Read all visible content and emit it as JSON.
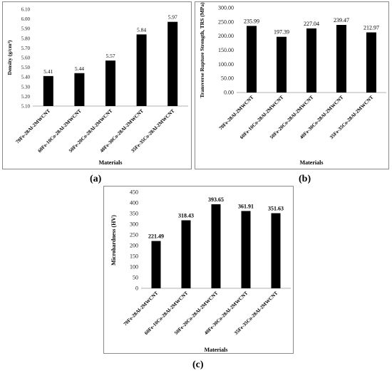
{
  "chart_data": [
    {
      "type": "bar",
      "panel": "(a)",
      "categories": [
        "70Fe-28Al-2MWCNT",
        "60Fe-10Co-28Al-2MWCNT",
        "50Fe-20Co-28Al-2MWCNT",
        "40Fe-30Co-28Al-2MWCNT",
        "35Fe-35Co-28Al-2MWCNT"
      ],
      "values": [
        5.41,
        5.44,
        5.57,
        5.84,
        5.97
      ],
      "value_labels": [
        "5.41",
        "5.44",
        "5.57",
        "5.84",
        "5.97"
      ],
      "ylabel": "Density (g/cm³)",
      "xlabel": "Materials",
      "ylim": [
        5.1,
        6.1
      ],
      "yticks": [
        "5.10",
        "5.20",
        "5.30",
        "5.40",
        "5.50",
        "5.60",
        "5.70",
        "5.80",
        "5.90",
        "6.00",
        "6.10"
      ],
      "bar_color": "#000000",
      "grid": false,
      "value_labels_bold": false
    },
    {
      "type": "bar",
      "panel": "(b)",
      "categories": [
        "70Fe-28Al-2MWCNT",
        "60Fe-10Co-28Al-2MWCNT",
        "50Fe-20Co-28Al-2MWCNT",
        "40Fe-30Co-28Al-2MWCNT",
        "35Fe-35Co-28Al-2MWCNT"
      ],
      "values": [
        235.99,
        197.39,
        227.04,
        239.47,
        212.97
      ],
      "value_labels": [
        "235.99",
        "197.39",
        "227.04",
        "239.47",
        "212.97"
      ],
      "ylabel": "Transverse Rupture Strength, TRS (MPa)",
      "xlabel": "Materials",
      "ylim": [
        0,
        300
      ],
      "yticks": [
        "0.00",
        "50.00",
        "100.00",
        "150.00",
        "200.00",
        "250.00",
        "300.00"
      ],
      "bar_color": "#000000",
      "grid": false,
      "value_labels_bold": false
    },
    {
      "type": "bar",
      "panel": "(c)",
      "categories": [
        "70Fe-28Al-2MWCNT",
        "60Fe-10Co-28Al-2MWCNT",
        "50Fe-20Co-28Al-2MWCNT",
        "40Fe-30Co-28Al-2MWCNT",
        "35Fe-35Co-28Al-2MWCNT"
      ],
      "values": [
        221.49,
        318.43,
        393.65,
        361.91,
        351.63
      ],
      "value_labels": [
        "221.49",
        "318.43",
        "393.65",
        "361.91",
        "351.63"
      ],
      "ylabel": "Microhardness (HV)",
      "xlabel": "Materials",
      "ylim": [
        0,
        450
      ],
      "yticks": [
        "0",
        "50",
        "100",
        "150",
        "200",
        "250",
        "300",
        "350",
        "400",
        "450"
      ],
      "bar_color": "#000000",
      "grid": false,
      "value_labels_bold": true
    }
  ],
  "labels": {
    "a": "(a)",
    "b": "(b)",
    "c": "(c)"
  }
}
